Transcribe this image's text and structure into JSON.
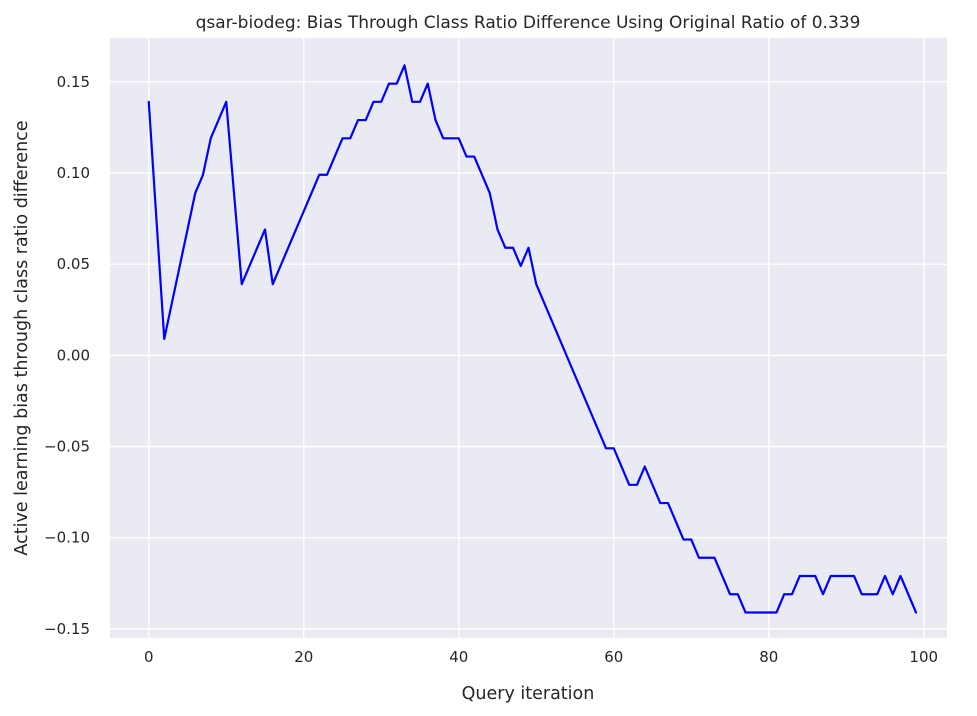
{
  "colors": {
    "plot_bg": "#eaeaf2",
    "grid": "#ffffff",
    "series": "#0000ff",
    "text": "#262626"
  },
  "chart_data": {
    "type": "line",
    "title": "qsar-biodeg: Bias Through Class Ratio Difference Using Original Ratio of 0.339",
    "xlabel": "Query iteration",
    "ylabel": "Active learning bias through class ratio difference",
    "xlim": [
      -5,
      103
    ],
    "ylim": [
      -0.155,
      0.174
    ],
    "xticks": [
      0,
      20,
      40,
      60,
      80,
      100
    ],
    "xtick_labels": [
      "0",
      "20",
      "40",
      "60",
      "80",
      "100"
    ],
    "yticks": [
      -0.15,
      -0.1,
      -0.05,
      0.0,
      0.05,
      0.1,
      0.15
    ],
    "ytick_labels": [
      "−0.15",
      "−0.10",
      "−0.05",
      "0.00",
      "0.05",
      "0.10",
      "0.15"
    ],
    "grid": true,
    "series": [
      {
        "color": "#0000ff",
        "x": [
          0,
          1,
          2,
          3,
          4,
          5,
          6,
          7,
          8,
          9,
          10,
          11,
          12,
          13,
          14,
          15,
          16,
          17,
          18,
          19,
          20,
          21,
          22,
          23,
          24,
          25,
          26,
          27,
          28,
          29,
          30,
          31,
          32,
          33,
          34,
          35,
          36,
          37,
          38,
          39,
          40,
          41,
          42,
          43,
          44,
          45,
          46,
          47,
          48,
          49,
          50,
          51,
          52,
          53,
          54,
          55,
          56,
          57,
          58,
          59,
          60,
          61,
          62,
          63,
          64,
          65,
          66,
          67,
          68,
          69,
          70,
          71,
          72,
          73,
          74,
          75,
          76,
          77,
          78,
          79,
          80,
          81,
          82,
          83,
          84,
          85,
          86,
          87,
          88,
          89,
          90,
          91,
          92,
          93,
          94,
          95,
          96,
          97,
          98,
          99
        ],
        "y": [
          0.139,
          0.074,
          0.009,
          0.029,
          0.049,
          0.069,
          0.089,
          0.099,
          0.119,
          0.129,
          0.139,
          0.089,
          0.039,
          0.049,
          0.059,
          0.069,
          0.039,
          0.049,
          0.059,
          0.069,
          0.079,
          0.089,
          0.099,
          0.099,
          0.109,
          0.119,
          0.119,
          0.129,
          0.129,
          0.139,
          0.139,
          0.149,
          0.149,
          0.159,
          0.139,
          0.139,
          0.149,
          0.129,
          0.119,
          0.119,
          0.119,
          0.109,
          0.109,
          0.099,
          0.089,
          0.069,
          0.059,
          0.059,
          0.049,
          0.059,
          0.039,
          0.029,
          0.019,
          0.009,
          -0.001,
          -0.011,
          -0.021,
          -0.031,
          -0.041,
          -0.051,
          -0.051,
          -0.061,
          -0.071,
          -0.071,
          -0.061,
          -0.071,
          -0.081,
          -0.081,
          -0.091,
          -0.101,
          -0.101,
          -0.111,
          -0.111,
          -0.111,
          -0.121,
          -0.131,
          -0.131,
          -0.141,
          -0.141,
          -0.141,
          -0.141,
          -0.141,
          -0.131,
          -0.131,
          -0.121,
          -0.121,
          -0.121,
          -0.131,
          -0.121,
          -0.121,
          -0.121,
          -0.121,
          -0.131,
          -0.131,
          -0.131,
          -0.121,
          -0.131,
          -0.121,
          -0.131,
          -0.141
        ]
      }
    ]
  }
}
